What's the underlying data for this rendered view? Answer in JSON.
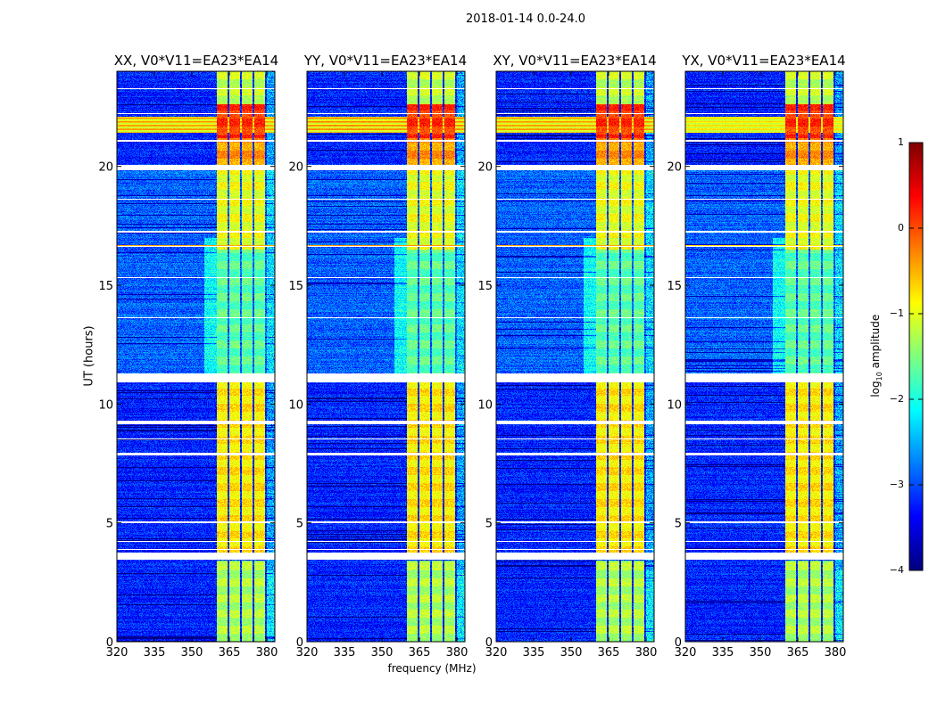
{
  "suptitle": "2018-01-14 0.0-24.0",
  "chart_data": {
    "type": "heatmap",
    "panels": [
      {
        "title": "XX, V0*V11=EA23*EA14",
        "rfi_strength": 1.0
      },
      {
        "title": "YY, V0*V11=EA23*EA14",
        "rfi_strength": 1.1
      },
      {
        "title": "XY, V0*V11=EA23*EA14",
        "rfi_strength": 1.0
      },
      {
        "title": "YX, V0*V11=EA23*EA14",
        "rfi_strength": 0.6
      }
    ],
    "xlabel": "frequency (MHz)",
    "ylabel": "UT (hours)",
    "xlim": [
      320,
      383.2
    ],
    "ylim": [
      0,
      24
    ],
    "xticks": [
      "320",
      "335",
      "350",
      "365",
      "380"
    ],
    "yticks": [
      "0",
      "5",
      "10",
      "15",
      "20"
    ],
    "colorbar": {
      "label": "log10 amplitude",
      "label_main": "log",
      "label_sub": "10",
      "label_rest": " amplitude",
      "range": [
        -4,
        1
      ],
      "ticks": [
        "1",
        "0",
        "−1",
        "−2",
        "−3",
        "−4"
      ],
      "colormap": "jet"
    },
    "subbands_mhz": [
      [
        360,
        364.3
      ],
      [
        365,
        369.3
      ],
      [
        370,
        374.3
      ],
      [
        375,
        379.3
      ]
    ],
    "subband_levels": [
      {
        "t": [
          0,
          3.4
        ],
        "level": -1.3
      },
      {
        "t": [
          3.75,
          11.0
        ],
        "level": -0.8
      },
      {
        "t": [
          11.3,
          16.5
        ],
        "level": -1.7
      },
      {
        "t": [
          16.5,
          20.0
        ],
        "level": -1.0
      },
      {
        "t": [
          20.0,
          21.2
        ],
        "level": -0.4
      },
      {
        "t": [
          21.2,
          22.6
        ],
        "level": 0.1
      },
      {
        "t": [
          22.6,
          24.0
        ],
        "level": -1.2
      }
    ],
    "data_gaps_hours": [
      [
        3.45,
        3.75
      ],
      [
        3.85,
        3.9
      ],
      [
        4.2,
        4.25
      ],
      [
        5.0,
        5.05
      ],
      [
        7.85,
        7.95
      ],
      [
        8.5,
        8.55
      ],
      [
        9.15,
        9.3
      ],
      [
        10.9,
        11.3
      ],
      [
        13.6,
        13.65
      ],
      [
        15.3,
        15.35
      ],
      [
        16.6,
        16.65
      ],
      [
        17.2,
        17.3
      ],
      [
        18.6,
        18.65
      ],
      [
        19.85,
        20.05
      ],
      [
        21.05,
        21.1
      ],
      [
        22.2,
        22.25
      ],
      [
        23.25,
        23.3
      ]
    ],
    "rfi_hours": [
      [
        21.4,
        22.1
      ],
      [
        16.6,
        16.7
      ]
    ],
    "background_level": -3.2
  }
}
